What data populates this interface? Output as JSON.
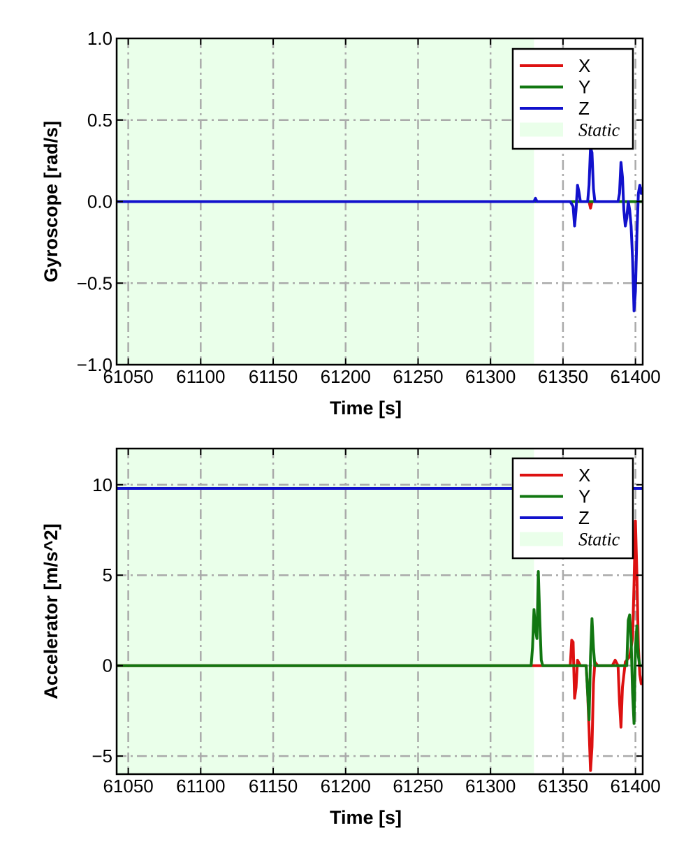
{
  "chart_data": [
    {
      "type": "line",
      "xlabel": "Time [s]",
      "ylabel": "Gyroscope [rad/s]",
      "xlim": [
        61042,
        61405
      ],
      "ylim": [
        -1.0,
        1.0
      ],
      "x_ticks": [
        61050,
        61100,
        61150,
        61200,
        61250,
        61300,
        61350,
        61400
      ],
      "x_tick_labels": [
        "61050",
        "61100",
        "61150",
        "61200",
        "61250",
        "61300",
        "61350",
        "61400"
      ],
      "y_ticks": [
        -1.0,
        -0.5,
        0.0,
        0.5,
        1.0
      ],
      "y_tick_labels": [
        "−1.0",
        "−0.5",
        "0.0",
        "0.5",
        "1.0"
      ],
      "grid": true,
      "legend_position": "top-right",
      "static_span": [
        61042,
        61330
      ],
      "series": [
        {
          "name": "X",
          "color": "#dd1111",
          "x": [
            61042,
            61330,
            61360,
            61365,
            61368,
            61369,
            61370,
            61372,
            61380,
            61392,
            61396,
            61400,
            61405
          ],
          "y": [
            0.0,
            0.0,
            0.0,
            0.0,
            0.0,
            -0.04,
            0.0,
            0.0,
            0.0,
            0.0,
            0.0,
            0.0,
            0.0
          ]
        },
        {
          "name": "Y",
          "color": "#117711",
          "x": [
            61042,
            61330,
            61360,
            61372,
            61380,
            61395,
            61400,
            61405
          ],
          "y": [
            0.0,
            0.0,
            0.0,
            0.0,
            0.0,
            0.0,
            0.0,
            0.0
          ]
        },
        {
          "name": "Z",
          "color": "#1111cc",
          "x": [
            61042,
            61330,
            61331,
            61332,
            61355,
            61357,
            61358,
            61359,
            61360,
            61361,
            61362,
            61365,
            61367,
            61368,
            61369,
            61370,
            61371,
            61372,
            61373,
            61375,
            61380,
            61385,
            61388,
            61389,
            61390,
            61391,
            61392,
            61393,
            61394,
            61395,
            61396,
            61397,
            61398,
            61399,
            61400,
            61401,
            61402,
            61403,
            61404,
            61405
          ],
          "y": [
            0.0,
            0.0,
            0.02,
            0.0,
            0.0,
            -0.03,
            -0.15,
            -0.05,
            0.1,
            0.06,
            0.0,
            0.0,
            0.0,
            0.1,
            0.33,
            0.3,
            0.08,
            0.0,
            0.0,
            0.0,
            0.0,
            0.0,
            0.0,
            0.05,
            0.24,
            0.15,
            -0.05,
            -0.15,
            -0.1,
            0.0,
            -0.05,
            -0.15,
            -0.35,
            -0.67,
            -0.55,
            -0.2,
            0.05,
            0.1,
            0.05,
            0.08
          ]
        }
      ]
    },
    {
      "type": "line",
      "xlabel": "Time [s]",
      "ylabel": "Accelerator [m/s^2]",
      "xlim": [
        61042,
        61405
      ],
      "ylim": [
        -6.0,
        12.0
      ],
      "x_ticks": [
        61050,
        61100,
        61150,
        61200,
        61250,
        61300,
        61350,
        61400
      ],
      "x_tick_labels": [
        "61050",
        "61100",
        "61150",
        "61200",
        "61250",
        "61300",
        "61350",
        "61400"
      ],
      "y_ticks": [
        -5,
        0,
        5,
        10
      ],
      "y_tick_labels": [
        "−5",
        "0",
        "5",
        "10"
      ],
      "grid": true,
      "legend_position": "top-right",
      "static_span": [
        61042,
        61330
      ],
      "series": [
        {
          "name": "X",
          "color": "#dd1111",
          "x": [
            61042,
            61330,
            61355,
            61356,
            61357,
            61358,
            61359,
            61360,
            61362,
            61366,
            61367,
            61368,
            61369,
            61370,
            61371,
            61372,
            61374,
            61384,
            61386,
            61388,
            61389,
            61390,
            61391,
            61393,
            61396,
            61398,
            61399,
            61400,
            61401,
            61402,
            61403,
            61404,
            61405
          ],
          "y": [
            0.0,
            0.0,
            0.0,
            1.4,
            1.3,
            -1.8,
            -1.2,
            0.3,
            0.0,
            0.0,
            -1.5,
            -3.5,
            -5.8,
            -4.5,
            -1.0,
            0.2,
            0.0,
            0.0,
            0.3,
            0.0,
            -2.0,
            -3.4,
            -1.2,
            0.2,
            0.5,
            1.5,
            4.5,
            8.0,
            5.0,
            1.0,
            -0.5,
            -1.0,
            -0.8
          ]
        },
        {
          "name": "Y",
          "color": "#117711",
          "x": [
            61042,
            61328,
            61329,
            61330,
            61331,
            61332,
            61333,
            61334,
            61335,
            61336,
            61340,
            61350,
            61360,
            61366,
            61367,
            61368,
            61369,
            61370,
            61371,
            61372,
            61374,
            61380,
            61390,
            61394,
            61395,
            61396,
            61397,
            61398,
            61399,
            61400,
            61401,
            61402,
            61403,
            61405
          ],
          "y": [
            0.0,
            0.0,
            1.0,
            3.1,
            2.0,
            1.5,
            5.2,
            2.5,
            0.3,
            0.0,
            0.0,
            0.0,
            0.0,
            0.0,
            -1.5,
            -3.0,
            0.5,
            2.6,
            1.0,
            0.0,
            0.0,
            0.0,
            0.0,
            0.0,
            2.5,
            2.8,
            1.5,
            -1.5,
            -3.2,
            1.0,
            2.2,
            0.5,
            0.0,
            0.0
          ]
        },
        {
          "name": "Z",
          "color": "#1111cc",
          "x": [
            61042,
            61100,
            61200,
            61300,
            61330,
            61360,
            61380,
            61400,
            61405
          ],
          "y": [
            9.8,
            9.8,
            9.8,
            9.8,
            9.8,
            9.8,
            9.8,
            9.8,
            9.8
          ]
        }
      ]
    }
  ],
  "legend": {
    "static_label": "Static",
    "static_color": "#eaffea"
  }
}
